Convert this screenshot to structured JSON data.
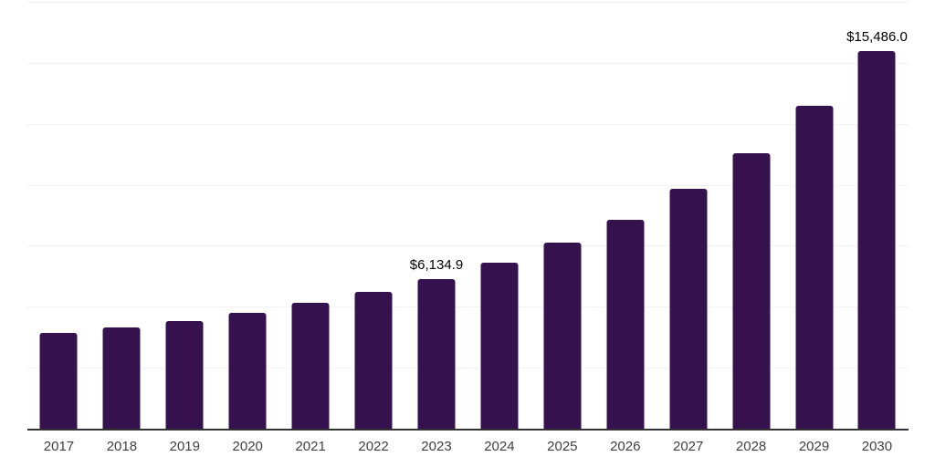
{
  "chart_data": {
    "type": "bar",
    "title": "",
    "xlabel": "",
    "ylabel": "",
    "categories": [
      "2017",
      "2018",
      "2019",
      "2020",
      "2021",
      "2022",
      "2023",
      "2024",
      "2025",
      "2026",
      "2027",
      "2028",
      "2029",
      "2030"
    ],
    "values": [
      3920,
      4150,
      4410,
      4750,
      5170,
      5610,
      6134.9,
      6800,
      7630,
      8570,
      9820,
      11300,
      13240,
      15486.0
    ],
    "data_labels": [
      "",
      "",
      "",
      "",
      "",
      "",
      "$6,134.9",
      "",
      "",
      "",
      "",
      "",
      "",
      "$15,486.0"
    ],
    "ylim": [
      0,
      17500
    ],
    "gridline_step": 2500,
    "grid": true,
    "legend": false,
    "colors": {
      "bar": "#35114D",
      "axis_line": "#333333",
      "gridline": "#f2f2f2",
      "tick_label": "#404040",
      "data_label": "#000000",
      "background": "#ffffff"
    }
  }
}
